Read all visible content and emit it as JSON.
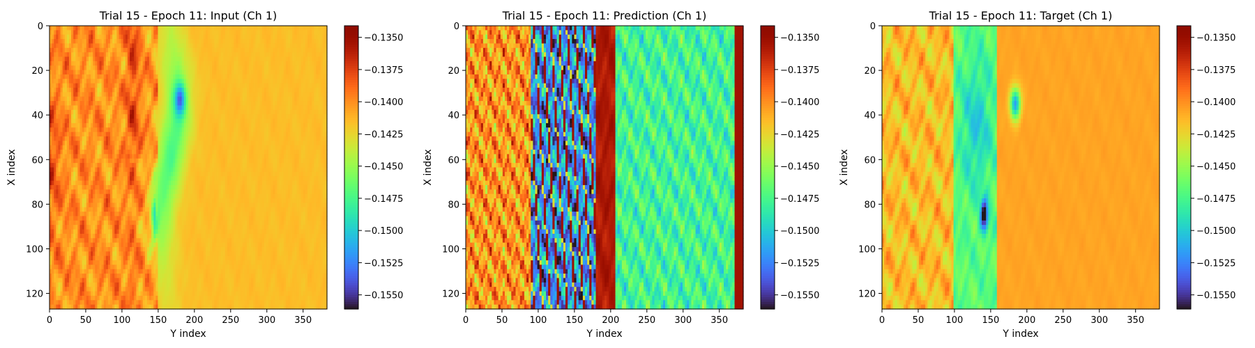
{
  "chart_data": [
    {
      "type": "heatmap",
      "title": "Trial 15 - Epoch 11: Input (Ch 1)",
      "xlabel": "Y index",
      "ylabel": "X index",
      "xlim": [
        0,
        383
      ],
      "ylim": [
        127,
        0
      ],
      "xticks": [
        0,
        50,
        100,
        150,
        200,
        250,
        300,
        350
      ],
      "yticks": [
        0,
        20,
        40,
        60,
        80,
        100,
        120
      ],
      "colormap": "turbo",
      "color_range": [
        -0.1561,
        -0.1341
      ],
      "colorbar_ticks": [
        "−0.1350",
        "−0.1375",
        "−0.1400",
        "−0.1425",
        "−0.1450",
        "−0.1475",
        "−0.1500",
        "−0.1525",
        "−0.1550"
      ],
      "field_description": "left third (Y<150) mottled orange/red/light-green, dark red streak near Y 110-120, green/cyan band along Y 130-170 with blue spots near (X 35, Y 180) and (X 85, Y 145); right of Y 200 nearly uniform orange-yellow (~-0.1405)"
    },
    {
      "type": "heatmap",
      "title": "Trial 15 - Epoch 11: Prediction (Ch 1)",
      "xlabel": "Y index",
      "ylabel": "X index",
      "xlim": [
        0,
        383
      ],
      "ylim": [
        127,
        0
      ],
      "xticks": [
        0,
        50,
        100,
        150,
        200,
        250,
        300,
        350
      ],
      "yticks": [
        0,
        20,
        40,
        60,
        80,
        100,
        120
      ],
      "colormap": "turbo",
      "color_range": [
        -0.1561,
        -0.1341
      ],
      "colorbar_ticks": [
        "−0.1350",
        "−0.1375",
        "−0.1400",
        "−0.1425",
        "−0.1450",
        "−0.1475",
        "−0.1500",
        "−0.1525",
        "−0.1550"
      ],
      "field_description": "Y<90 dense red/orange/yellow blobs, Y 90-180 dark blue/cyan streaks interleaved with red filaments, dark red band near Y 180-200, Y>210 light-green/cyan blobs, dark red strip at right edge"
    },
    {
      "type": "heatmap",
      "title": "Trial 15 - Epoch 11: Target (Ch 1)",
      "xlabel": "Y index",
      "ylabel": "X index",
      "xlim": [
        0,
        383
      ],
      "ylim": [
        127,
        0
      ],
      "xticks": [
        0,
        50,
        100,
        150,
        200,
        250,
        300,
        350
      ],
      "yticks": [
        0,
        20,
        40,
        60,
        80,
        100,
        120
      ],
      "colormap": "turbo",
      "color_range": [
        -0.1561,
        -0.1341
      ],
      "colorbar_ticks": [
        "−0.1350",
        "−0.1375",
        "−0.1400",
        "−0.1425",
        "−0.1450",
        "−0.1475",
        "−0.1500",
        "−0.1525",
        "−0.1550"
      ],
      "field_description": "left region (Y<100) mottled orange/green, green/cyan region Y 100-160 with dark blue spots near (X 35, Y 185) and (X 85, Y 140); right of Y 160 nearly uniform orange (~-0.1405)"
    }
  ]
}
